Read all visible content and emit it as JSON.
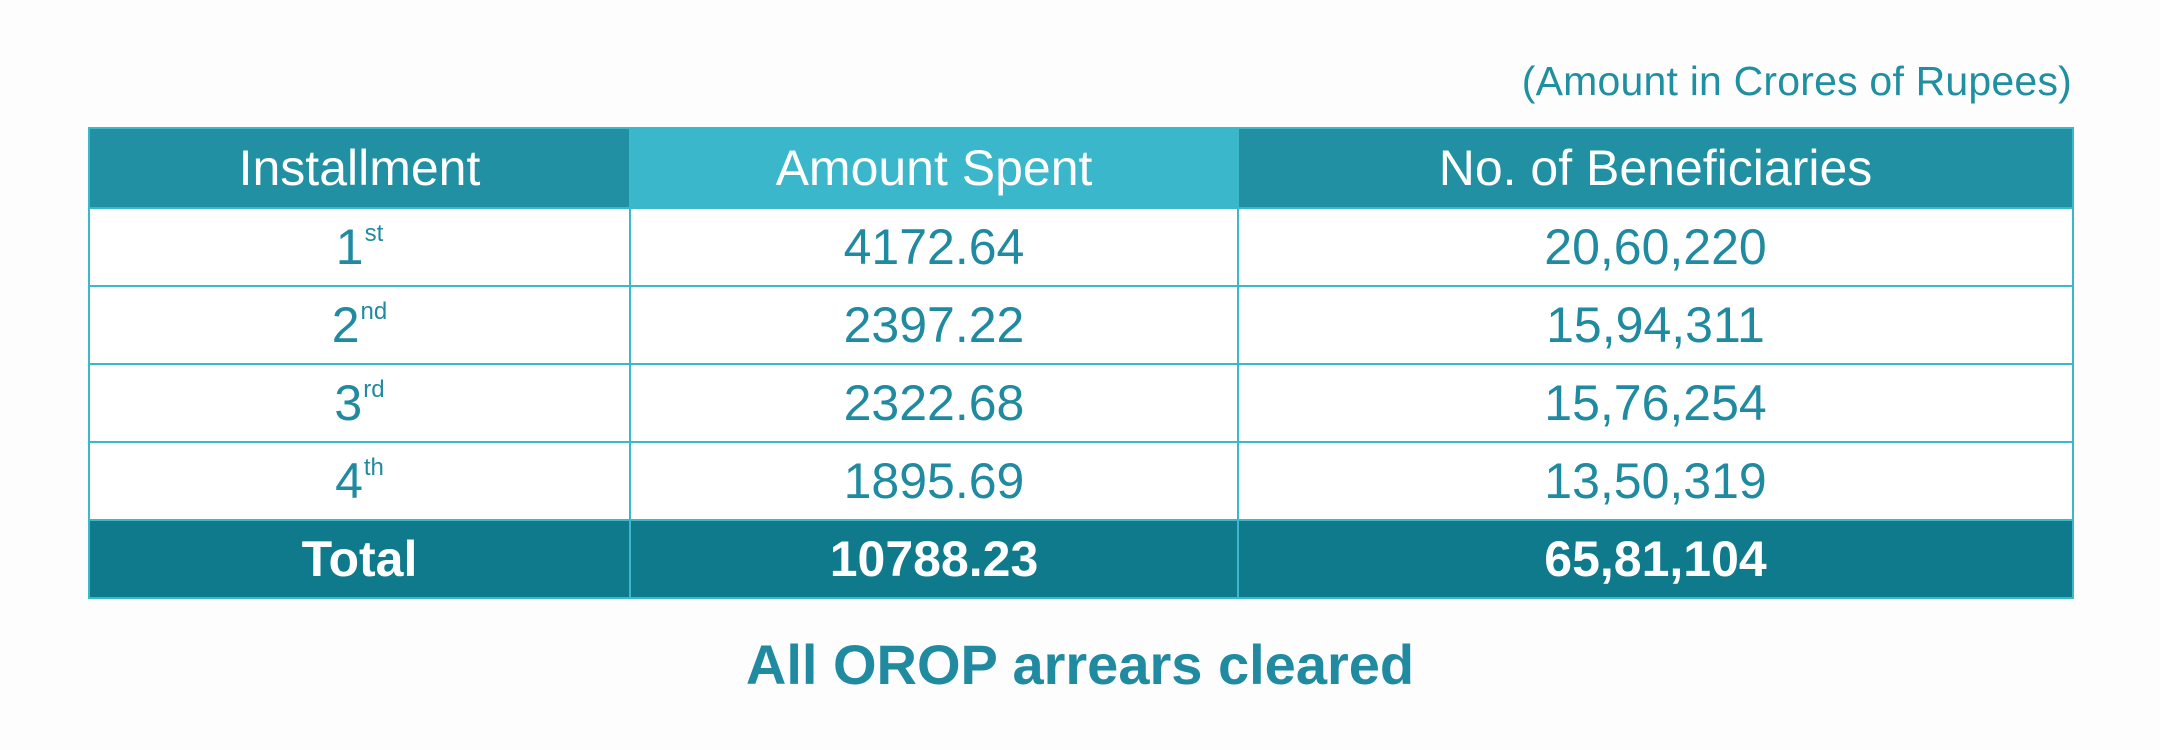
{
  "unit_note": "(Amount in Crores of Rupees)",
  "columns": [
    "Installment",
    "Amount Spent",
    "No. of Beneficiaries"
  ],
  "rows": [
    {
      "num": "1",
      "suffix": "st",
      "amount": "4172.64",
      "beneficiaries": "20,60,220"
    },
    {
      "num": "2",
      "suffix": "nd",
      "amount": "2397.22",
      "beneficiaries": "15,94,311"
    },
    {
      "num": "3",
      "suffix": "rd",
      "amount": "2322.68",
      "beneficiaries": "15,76,254"
    },
    {
      "num": "4",
      "suffix": "th",
      "amount": "1895.69",
      "beneficiaries": "13,50,319"
    }
  ],
  "total": {
    "label": "Total",
    "amount": "10788.23",
    "beneficiaries": "65,81,104"
  },
  "caption": "All OROP arrears cleared",
  "colors": {
    "header_dark": "#2190a3",
    "header_light": "#3ab7cb",
    "total_bg": "#0f7a8c",
    "text_teal": "#1f8aa0",
    "border": "#3bb8c9"
  }
}
